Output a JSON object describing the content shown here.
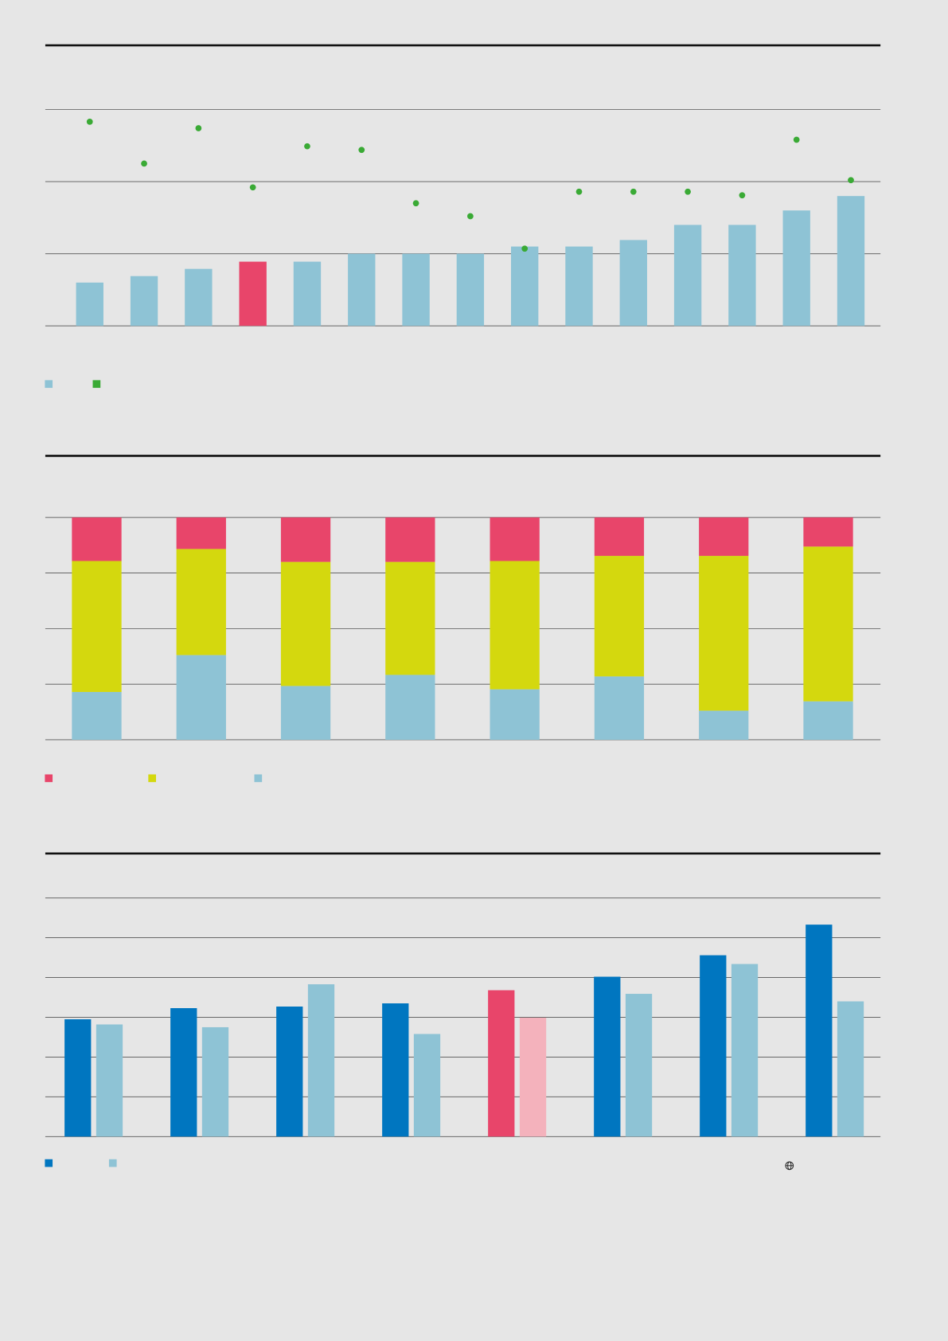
{
  "chart_data": [
    {
      "type": "bar",
      "categories": [
        null,
        null,
        null,
        null,
        null,
        null,
        null,
        null,
        null,
        null,
        null,
        null,
        null,
        null,
        null
      ],
      "ylim": [
        0,
        3
      ],
      "yticks": [
        0,
        1,
        2,
        3
      ],
      "grid": true,
      "series": [
        {
          "type": "bar",
          "color": "#8ec3d5",
          "colors": [
            "#8ec3d5",
            "#8ec3d5",
            "#8ec3d5",
            "#e8456a",
            "#8ec3d5",
            "#8ec3d5",
            "#8ec3d5",
            "#8ec3d5",
            "#8ec3d5",
            "#8ec3d5",
            "#8ec3d5",
            "#8ec3d5",
            "#8ec3d5",
            "#8ec3d5",
            "#8ec3d5"
          ],
          "values": [
            0.6,
            0.69,
            0.79,
            0.89,
            0.89,
            1.0,
            1.0,
            1.0,
            1.1,
            1.1,
            1.19,
            1.4,
            1.4,
            1.6,
            1.8
          ]
        },
        {
          "type": "scatter",
          "color": "#3aaa35",
          "values": [
            2.83,
            2.25,
            2.74,
            1.92,
            2.49,
            2.44,
            1.7,
            1.52,
            1.07,
            1.86,
            1.86,
            1.86,
            1.81,
            2.58,
            2.02
          ]
        }
      ]
    },
    {
      "type": "stacked-bar",
      "categories": [
        null,
        null,
        null,
        null,
        null,
        null,
        null,
        null
      ],
      "ylim": [
        0,
        100
      ],
      "yticks": [
        0,
        25,
        50,
        75,
        100
      ],
      "grid": true,
      "series": [
        {
          "color": "#8ec3d5",
          "values": [
            21.5,
            38.1,
            24.2,
            29.2,
            22.7,
            28.5,
            13.1,
            17.3
          ]
        },
        {
          "color": "#d4d80e",
          "values": [
            58.9,
            47.7,
            55.8,
            50.8,
            57.7,
            54.2,
            69.6,
            69.6
          ]
        },
        {
          "color": "#e8456a",
          "values": [
            19.6,
            14.2,
            20,
            20,
            19.6,
            17.3,
            17.3,
            13.1
          ]
        }
      ]
    },
    {
      "type": "grouped-bar",
      "categories": [
        null,
        null,
        null,
        null,
        null,
        null,
        null,
        null
      ],
      "ylim": [
        0,
        6
      ],
      "yticks": [
        0,
        1,
        2,
        3,
        4,
        5,
        6
      ],
      "grid": true,
      "series": [
        {
          "color": "#0076c0",
          "colors": [
            "#0076c0",
            "#0076c0",
            "#0076c0",
            "#0076c0",
            "#e8456a",
            "#0076c0",
            "#0076c0",
            "#0076c0"
          ],
          "values": [
            2.95,
            3.23,
            3.27,
            3.35,
            3.68,
            4.02,
            4.56,
            5.33
          ]
        },
        {
          "color": "#8ec3d5",
          "colors": [
            "#8ec3d5",
            "#8ec3d5",
            "#8ec3d5",
            "#8ec3d5",
            "#f4b2bc",
            "#8ec3d5",
            "#8ec3d5",
            "#8ec3d5"
          ],
          "values": [
            2.82,
            2.75,
            3.83,
            2.58,
            2.99,
            3.59,
            4.34,
            3.4
          ]
        }
      ]
    }
  ]
}
